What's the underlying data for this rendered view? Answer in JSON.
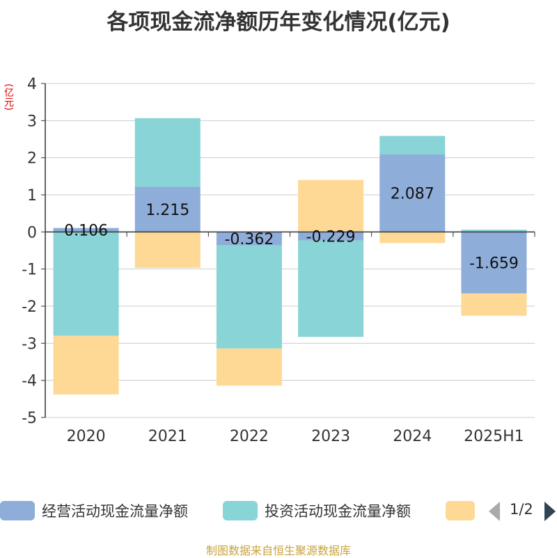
{
  "title": "各项现金流净额历年变化情况(亿元)",
  "unit_label": "(亿元)",
  "source": "制图数据来自恒生聚源数据库",
  "pager": {
    "text": "1/2"
  },
  "legend": {
    "items": [
      {
        "label": "经营活动现金流量净额",
        "color": "#8eaed9"
      },
      {
        "label": "投资活动现金流量净额",
        "color": "#88d4d6"
      },
      {
        "label": "",
        "color": "#fed996"
      }
    ]
  },
  "chart_data": {
    "type": "bar",
    "stacked": true,
    "categories": [
      "2020",
      "2021",
      "2022",
      "2023",
      "2024",
      "2025H1"
    ],
    "ylim": [
      -5,
      4
    ],
    "yticks": [
      4,
      3,
      2,
      1,
      0,
      -1,
      -2,
      -3,
      -4,
      -5
    ],
    "grid": true,
    "legend_position": "bottom",
    "series": [
      {
        "name": "经营活动现金流量净额",
        "color": "#8eaed9",
        "values": [
          0.106,
          1.215,
          -0.362,
          -0.229,
          2.087,
          -1.659
        ],
        "labels": [
          "0.106",
          "1.215",
          "-0.362",
          "-0.229",
          "2.087",
          "-1.659"
        ]
      },
      {
        "name": "投资活动现金流量净额",
        "color": "#88d4d6",
        "values": [
          -2.8,
          1.85,
          -2.78,
          -2.6,
          0.5,
          0.06
        ]
      },
      {
        "color": "#fed996",
        "values": [
          -1.58,
          -0.97,
          -1.0,
          1.4,
          -0.3,
          -0.6
        ]
      }
    ]
  }
}
